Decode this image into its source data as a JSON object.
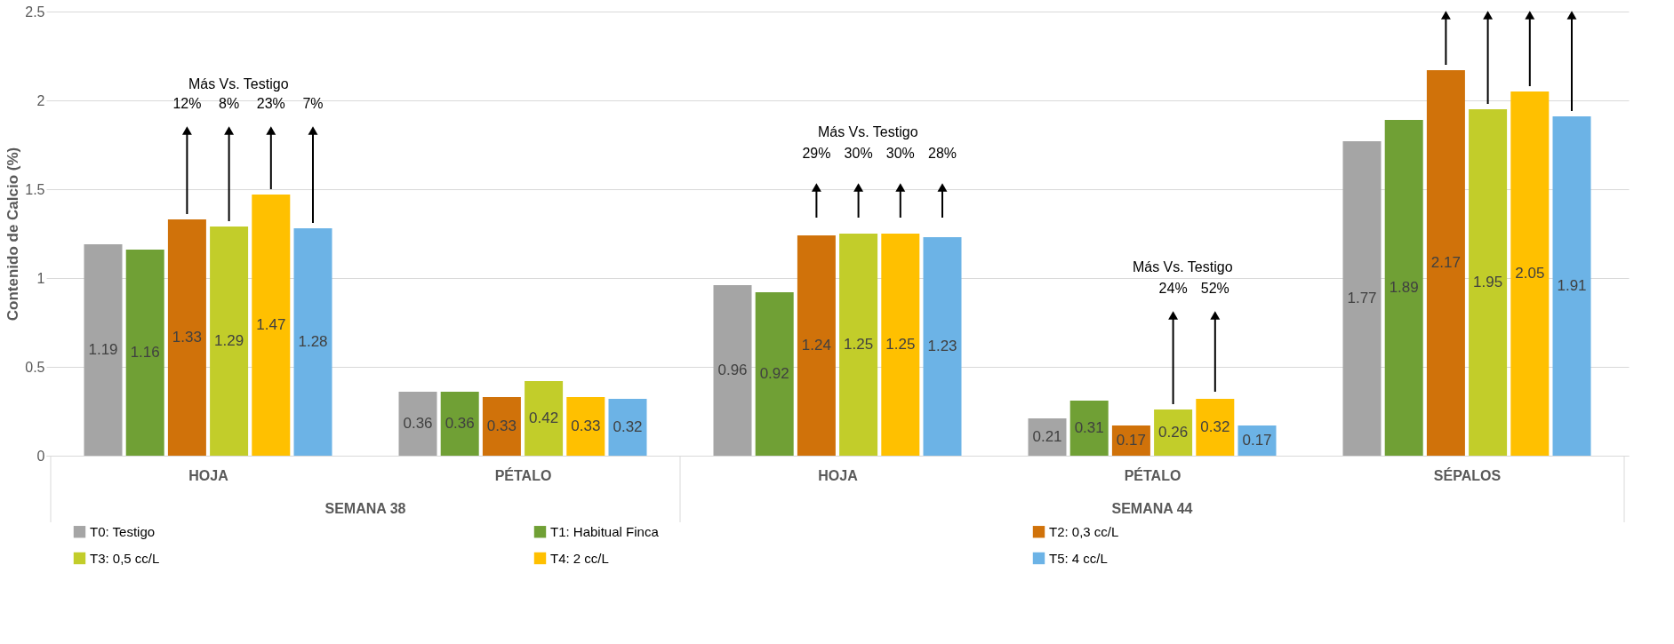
{
  "chart_data": {
    "type": "bar",
    "ylabel": "Contenido de Calcio (%)",
    "categories": [
      "HOJA",
      "PÉTALO",
      "HOJA",
      "PÉTALO",
      "SÉPALOS"
    ],
    "series": [
      {
        "name": "T0: Testigo",
        "color": "#a5a5a5",
        "values": [
          1.19,
          0.36,
          0.96,
          0.21,
          1.77
        ]
      },
      {
        "name": "T1: Habitual Finca",
        "color": "#70a035",
        "values": [
          1.16,
          0.36,
          0.92,
          0.31,
          1.89
        ]
      },
      {
        "name": "T2: 0,3 cc/L",
        "color": "#d0720a",
        "values": [
          1.33,
          0.33,
          1.24,
          0.17,
          2.17
        ]
      },
      {
        "name": "T3: 0,5 cc/L",
        "color": "#c2cd2a",
        "values": [
          1.29,
          0.42,
          1.25,
          0.26,
          1.95
        ]
      },
      {
        "name": "T4: 2 cc/L",
        "color": "#ffc000",
        "values": [
          1.47,
          0.33,
          1.25,
          0.32,
          2.05
        ]
      },
      {
        "name": "T5: 4 cc/L",
        "color": "#6cb3e6",
        "values": [
          1.28,
          0.32,
          1.23,
          0.17,
          1.91
        ]
      }
    ],
    "ylim": [
      0,
      2.5
    ],
    "yticks": [
      0,
      0.5,
      1,
      1.5,
      2,
      2.5
    ],
    "grid": "y",
    "legend": "bottom",
    "data_labels": true,
    "annotations": [
      "SEMANA 38",
      "SEMANA 44",
      "Más Vs. Testigo",
      "12%",
      "8%",
      "23%",
      "7%",
      "Más Vs. Testigo",
      "29%",
      "30%",
      "30%",
      "28%",
      "Más Vs. Testigo",
      "24%",
      "52%"
    ]
  }
}
